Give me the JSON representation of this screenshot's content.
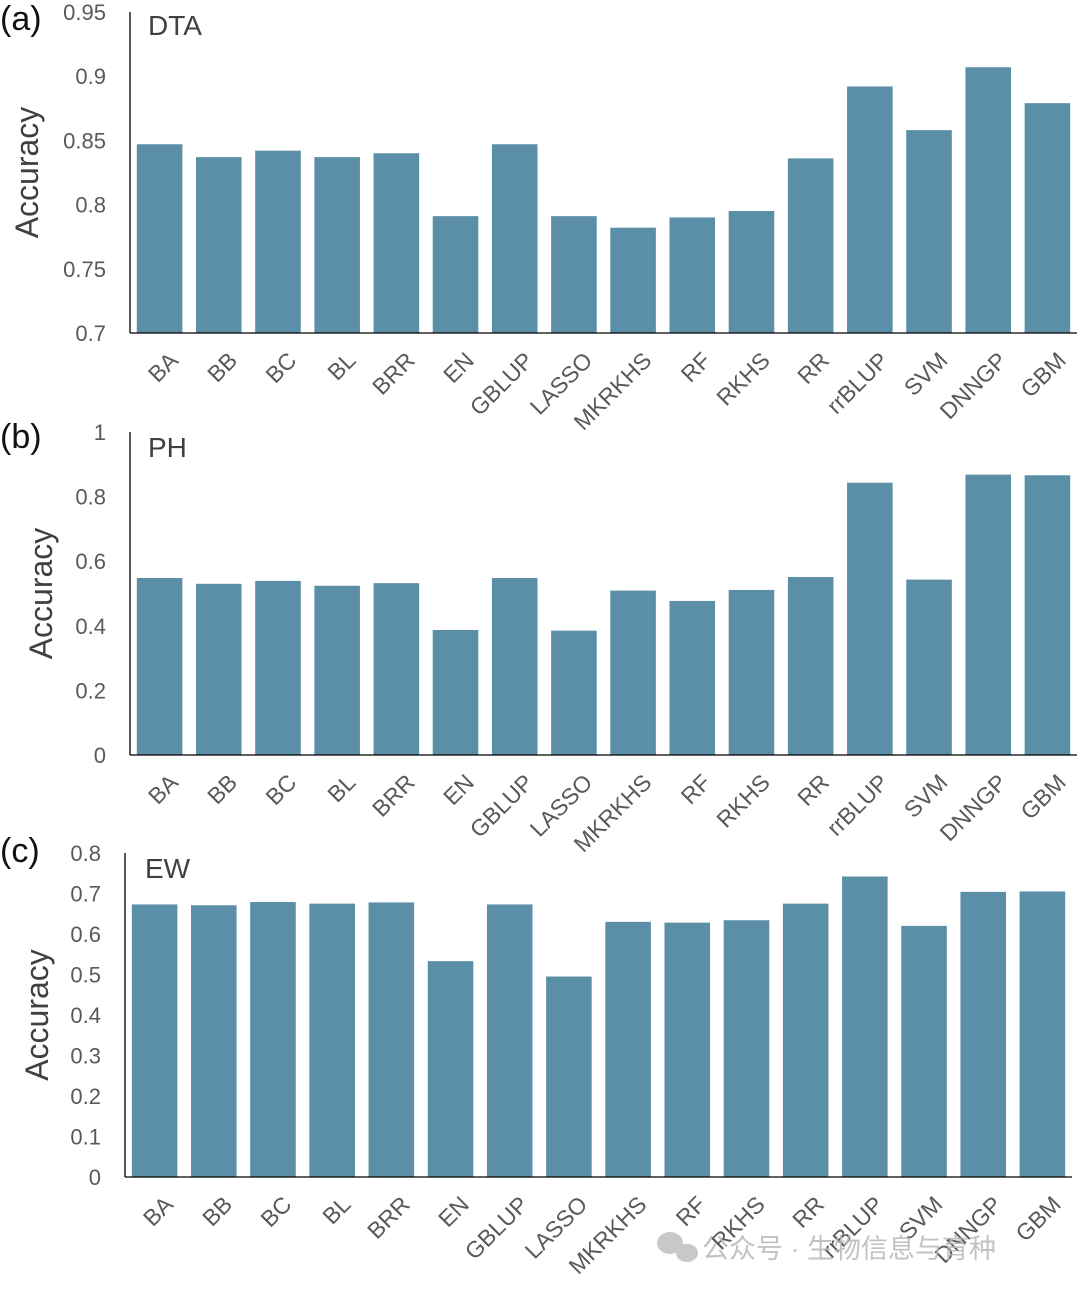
{
  "watermark": {
    "icon": "wechat-icon",
    "text": "公众号 · 生物信息与育种"
  },
  "chart_data": [
    {
      "type": "bar",
      "panel_label": "(a)",
      "title": "DTA",
      "ylabel": "Accuracy",
      "xlabel": "",
      "ylim": [
        0.7,
        0.95
      ],
      "yticks": [
        0.7,
        0.75,
        0.8,
        0.85,
        0.9,
        0.95
      ],
      "ytick_labels": [
        "0.7",
        "0.75",
        "0.8",
        "0.85",
        "0.9",
        "0.95"
      ],
      "grid": false,
      "legend": "none",
      "bar_color": "#5b8fa8",
      "categories": [
        "BA",
        "BB",
        "BC",
        "BL",
        "BRR",
        "EN",
        "GBLUP",
        "LASSO",
        "MKRKHS",
        "RF",
        "RKHS",
        "RR",
        "rrBLUP",
        "SVM",
        "DNNGP",
        "GBM"
      ],
      "values": [
        0.847,
        0.837,
        0.842,
        0.837,
        0.84,
        0.791,
        0.847,
        0.791,
        0.782,
        0.79,
        0.795,
        0.836,
        0.892,
        0.858,
        0.907,
        0.879
      ]
    },
    {
      "type": "bar",
      "panel_label": "(b)",
      "title": "PH",
      "ylabel": "Accuracy",
      "xlabel": "",
      "ylim": [
        0,
        1
      ],
      "yticks": [
        0,
        0.2,
        0.4,
        0.6,
        0.8,
        1
      ],
      "ytick_labels": [
        "0",
        "0.2",
        "0.4",
        "0.6",
        "0.8",
        "1"
      ],
      "grid": false,
      "legend": "none",
      "bar_color": "#5b8fa8",
      "categories": [
        "BA",
        "BB",
        "BC",
        "BL",
        "BRR",
        "EN",
        "GBLUP",
        "LASSO",
        "MKRKHS",
        "RF",
        "RKHS",
        "RR",
        "rrBLUP",
        "SVM",
        "DNNGP",
        "GBM"
      ],
      "values": [
        0.548,
        0.53,
        0.539,
        0.524,
        0.532,
        0.387,
        0.548,
        0.385,
        0.509,
        0.477,
        0.511,
        0.551,
        0.843,
        0.543,
        0.868,
        0.866
      ]
    },
    {
      "type": "bar",
      "panel_label": "(c)",
      "title": "EW",
      "ylabel": "Accuracy",
      "xlabel": "",
      "ylim": [
        0,
        0.8
      ],
      "yticks": [
        0,
        0.1,
        0.2,
        0.3,
        0.4,
        0.5,
        0.6,
        0.7,
        0.8
      ],
      "ytick_labels": [
        "0",
        "0.1",
        "0.2",
        "0.3",
        "0.4",
        "0.5",
        "0.6",
        "0.7",
        "0.8"
      ],
      "grid": false,
      "legend": "none",
      "bar_color": "#5b8fa8",
      "categories": [
        "BA",
        "BB",
        "BC",
        "BL",
        "BRR",
        "EN",
        "GBLUP",
        "LASSO",
        "MKRKHS",
        "RF",
        "RKHS",
        "RR",
        "rrBLUP",
        "SVM",
        "DNNGP",
        "GBM"
      ],
      "values": [
        0.673,
        0.671,
        0.679,
        0.675,
        0.678,
        0.533,
        0.673,
        0.495,
        0.63,
        0.628,
        0.634,
        0.675,
        0.742,
        0.62,
        0.704,
        0.705
      ]
    }
  ]
}
